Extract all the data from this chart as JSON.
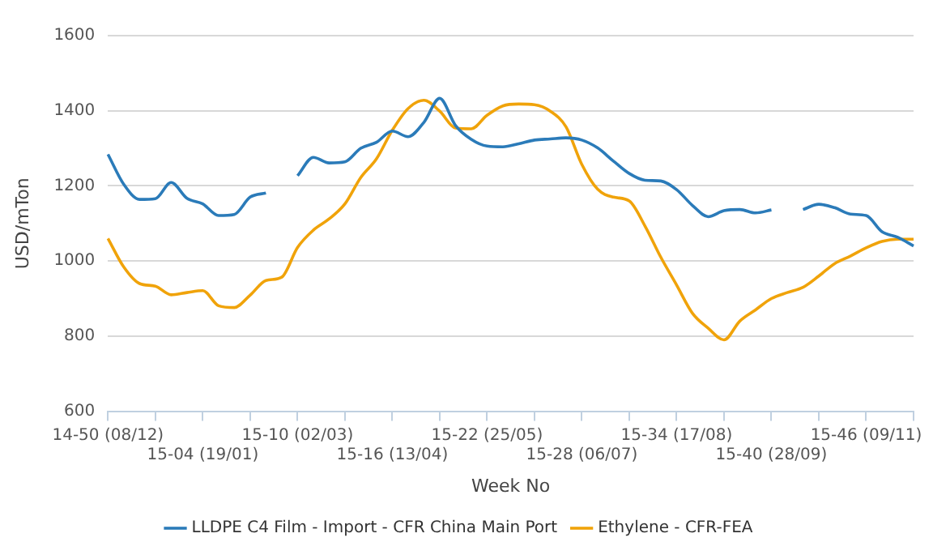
{
  "chart_data": {
    "type": "line",
    "xlabel": "Week No",
    "ylabel": "USD/mTon",
    "categories": [
      "14-50 (08/12)",
      null,
      null,
      null,
      null,
      null,
      "15-04 (19/01)",
      null,
      null,
      null,
      null,
      null,
      "15-10 (02/03)",
      null,
      null,
      null,
      null,
      null,
      "15-16 (13/04)",
      null,
      null,
      null,
      null,
      null,
      "15-22 (25/05)",
      null,
      null,
      null,
      null,
      null,
      "15-28 (06/07)",
      null,
      null,
      null,
      null,
      null,
      "15-34 (17/08)",
      null,
      null,
      null,
      null,
      null,
      "15-40 (28/09)",
      null,
      null,
      null,
      null,
      null,
      "15-46 (09/11)",
      null,
      null,
      null
    ],
    "series": [
      {
        "name": "LLDPE C4 Film - Import - CFR China Main Port",
        "color": "#2b7bb9",
        "values": [
          1284,
          1204,
          1164,
          1166,
          1209,
          1167,
          1152,
          1121,
          1124,
          1170,
          1181,
          null,
          1227,
          1276,
          1261,
          1264,
          1300,
          1316,
          1346,
          1331,
          1369,
          1433,
          1361,
          1324,
          1306,
          1304,
          1312,
          1322,
          1325,
          1328,
          1322,
          1301,
          1266,
          1233,
          1215,
          1213,
          1190,
          1148,
          1118,
          1134,
          1137,
          1128,
          1136,
          null,
          1137,
          1151,
          1142,
          1125,
          1121,
          1078,
          1063,
          1040
        ]
      },
      {
        "name": "Ethylene - CFR-FEA",
        "color": "#f0a30a",
        "values": [
          1060,
          984,
          940,
          933,
          910,
          916,
          921,
          881,
          876,
          909,
          948,
          957,
          1036,
          1082,
          1112,
          1152,
          1222,
          1272,
          1348,
          1406,
          1428,
          1399,
          1354,
          1352,
          1388,
          1413,
          1418,
          1416,
          1399,
          1357,
          1257,
          1191,
          1170,
          1160,
          1093,
          1010,
          936,
          861,
          821,
          790,
          840,
          870,
          900,
          916,
          930,
          960,
          993,
          1013,
          1035,
          1052,
          1058,
          1058
        ]
      }
    ],
    "ylim": [
      600,
      1600
    ],
    "yticks": [
      600,
      800,
      1000,
      1200,
      1400,
      1600
    ],
    "grid": "y",
    "legend": "bottom",
    "marker": "none",
    "line_style": "solid"
  }
}
